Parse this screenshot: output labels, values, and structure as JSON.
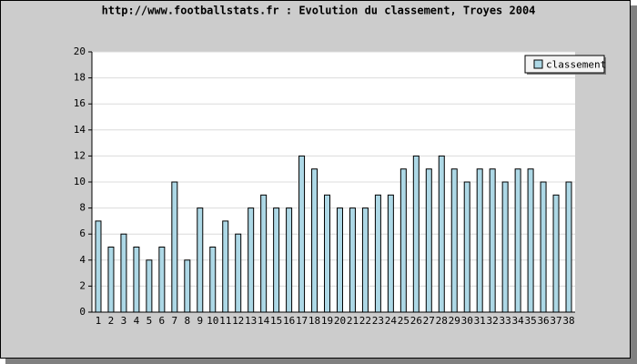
{
  "chart_data": {
    "type": "bar",
    "title": "http://www.footballstats.fr : Evolution du classement, Troyes 2004",
    "categories": [
      "1",
      "2",
      "3",
      "4",
      "5",
      "6",
      "7",
      "8",
      "9",
      "10",
      "11",
      "12",
      "13",
      "14",
      "15",
      "16",
      "17",
      "18",
      "19",
      "20",
      "21",
      "22",
      "23",
      "24",
      "25",
      "26",
      "27",
      "28",
      "29",
      "30",
      "31",
      "32",
      "33",
      "34",
      "35",
      "36",
      "37",
      "38"
    ],
    "series": [
      {
        "name": "classement",
        "color": "#add8e6",
        "values": [
          7,
          5,
          6,
          5,
          4,
          5,
          10,
          4,
          8,
          5,
          7,
          6,
          8,
          9,
          8,
          8,
          12,
          11,
          9,
          8,
          8,
          8,
          9,
          9,
          11,
          12,
          11,
          12,
          11,
          10,
          11,
          11,
          10,
          11,
          11,
          10,
          9,
          10
        ]
      }
    ],
    "ylim": [
      0,
      20
    ],
    "yticks": [
      0,
      2,
      4,
      6,
      8,
      10,
      12,
      14,
      16,
      18,
      20
    ],
    "grid": true,
    "legend": "top-right"
  }
}
